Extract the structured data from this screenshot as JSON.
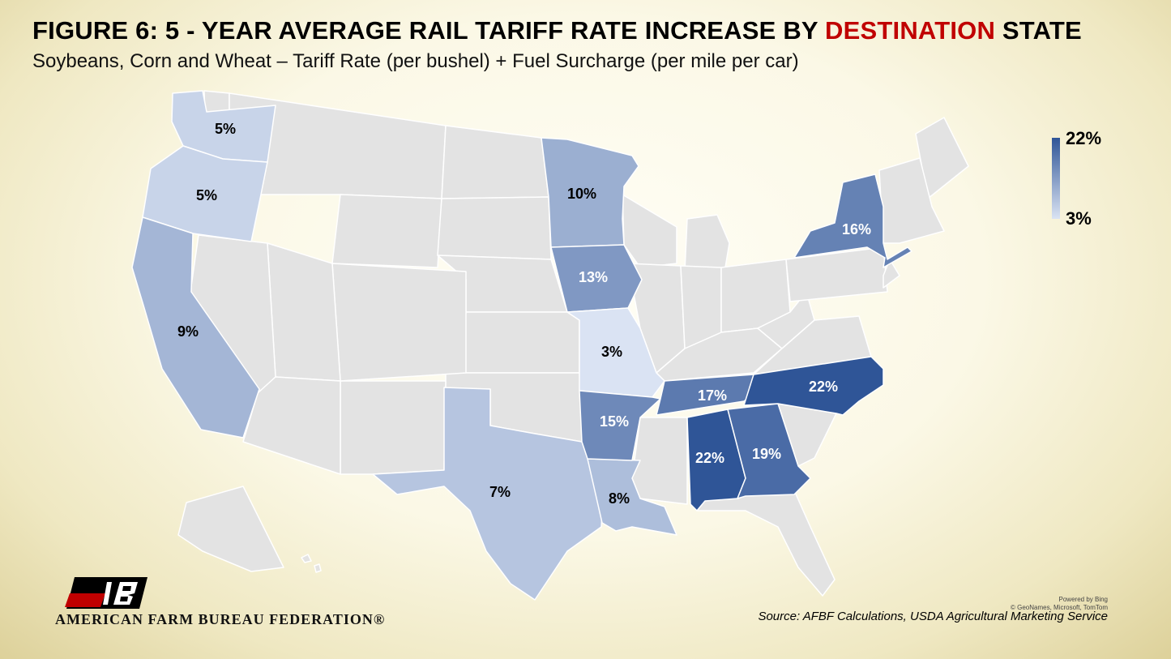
{
  "title": {
    "prefix": "FIGURE 6: 5 - YEAR AVERAGE RAIL TARIFF RATE INCREASE BY ",
    "highlight": "DESTINATION",
    "suffix": " STATE",
    "highlight_color": "#c00000"
  },
  "subtitle": "Soybeans, Corn and Wheat – Tariff Rate (per bushel) + Fuel Surcharge (per mile per car)",
  "map": {
    "scale": {
      "min": 3,
      "max": 22,
      "unit": "%",
      "color_low": "#dae3f3",
      "color_high": "#2f5597",
      "no_data_color": "#e3e3e3"
    },
    "states": [
      {
        "name": "Washington",
        "value": 5,
        "label": "5%"
      },
      {
        "name": "Oregon",
        "value": 5,
        "label": "5%"
      },
      {
        "name": "California",
        "value": 9,
        "label": "9%"
      },
      {
        "name": "Minnesota",
        "value": 10,
        "label": "10%"
      },
      {
        "name": "Iowa",
        "value": 13,
        "label": "13%"
      },
      {
        "name": "Missouri",
        "value": 3,
        "label": "3%"
      },
      {
        "name": "Texas",
        "value": 7,
        "label": "7%"
      },
      {
        "name": "Louisiana",
        "value": 8,
        "label": "8%"
      },
      {
        "name": "Arkansas",
        "value": 15,
        "label": "15%"
      },
      {
        "name": "Tennessee",
        "value": 17,
        "label": "17%"
      },
      {
        "name": "Alabama",
        "value": 22,
        "label": "22%"
      },
      {
        "name": "Georgia",
        "value": 19,
        "label": "19%"
      },
      {
        "name": "North Carolina",
        "value": 22,
        "label": "22%"
      },
      {
        "name": "New York",
        "value": 16,
        "label": "16%"
      }
    ]
  },
  "legend": {
    "max_label": "22%",
    "min_label": "3%"
  },
  "attribution": {
    "powered_by": "Powered by Bing",
    "copyright": "© GeoNames, Microsoft, TomTom"
  },
  "source": "Source: AFBF Calculations, USDA Agricultural Marketing Service",
  "logo": {
    "text": "AMERICAN FARM BUREAU FEDERATION®"
  }
}
